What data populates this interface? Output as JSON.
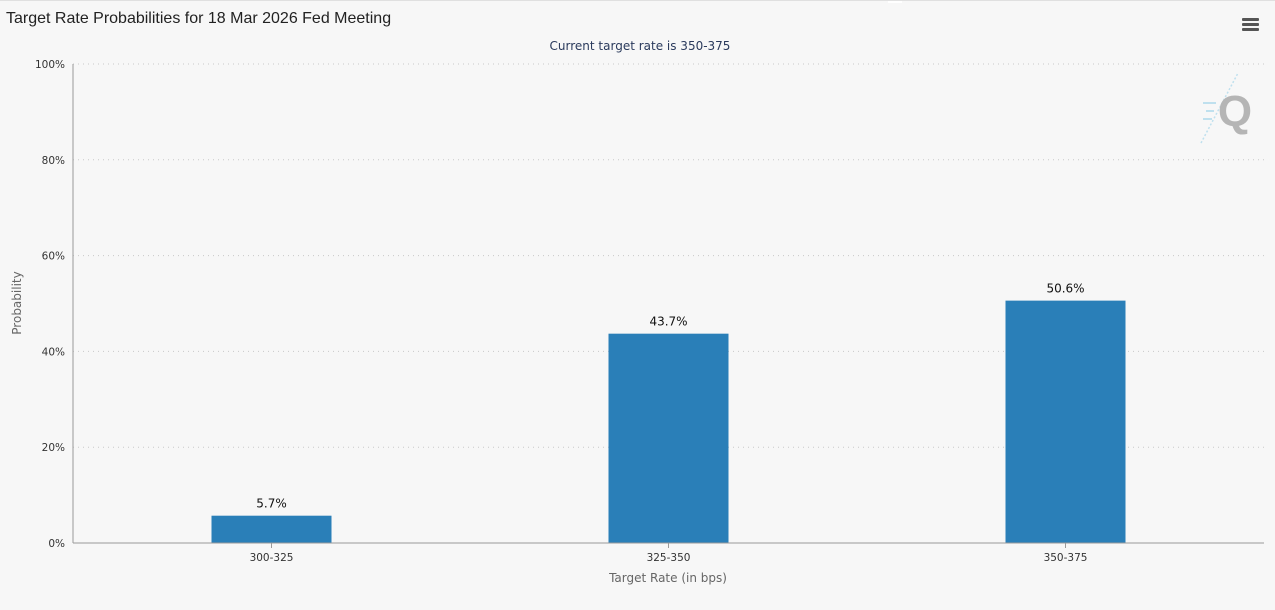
{
  "title": "Target Rate Probabilities for 18 Mar 2026 Fed Meeting",
  "menu_icon": "hamburger-menu-icon",
  "watermark_icon": "quikstrike-q-logo-icon",
  "colors": {
    "bar": "#2a7fb8",
    "grid": "#c8c8c8",
    "axis": "#9a9a9a",
    "subtitle": "#2a3a5c"
  },
  "chart_data": {
    "type": "bar",
    "title": "Target Rate Probabilities for 18 Mar 2026 Fed Meeting",
    "subtitle": "Current target rate is 350-375",
    "xlabel": "Target Rate (in bps)",
    "ylabel": "Probability",
    "categories": [
      "300-325",
      "325-350",
      "350-375"
    ],
    "values": [
      5.7,
      43.7,
      50.6
    ],
    "data_labels": [
      "5.7%",
      "43.7%",
      "50.6%"
    ],
    "ylim": [
      0,
      100
    ],
    "yticks": [
      0,
      20,
      40,
      60,
      80,
      100
    ],
    "ytick_labels": [
      "0%",
      "20%",
      "40%",
      "60%",
      "80%",
      "100%"
    ],
    "grid": true,
    "legend": "none"
  }
}
